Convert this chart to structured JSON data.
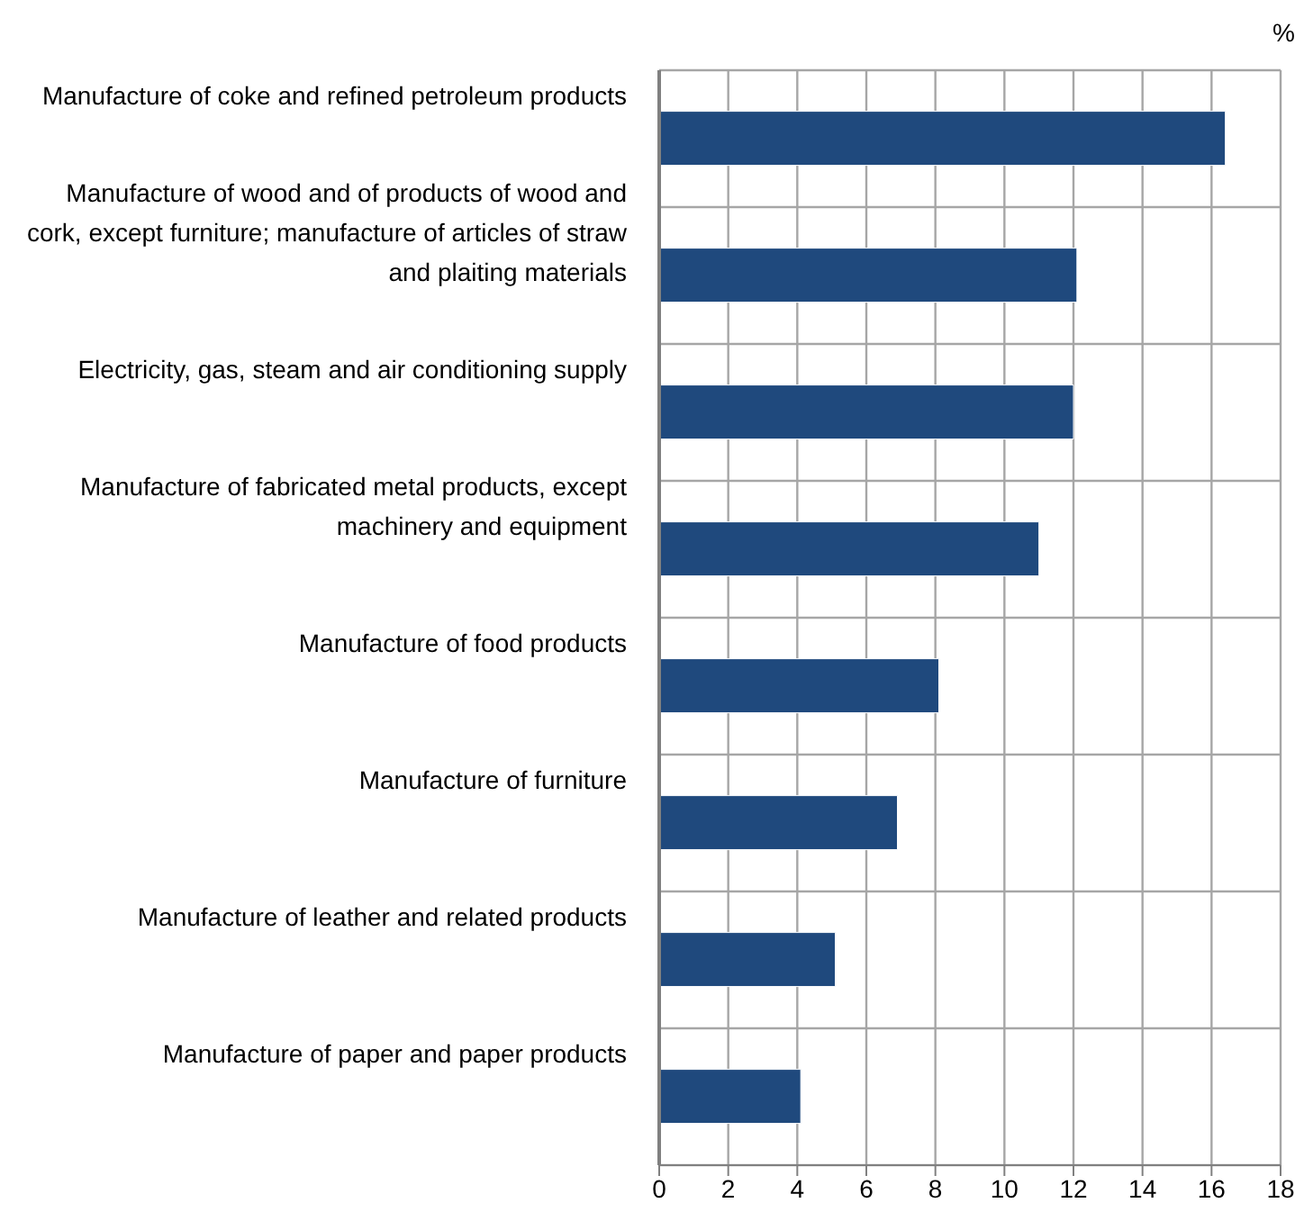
{
  "chart_data": {
    "type": "bar",
    "orientation": "horizontal",
    "xlabel": "%",
    "categories": [
      "Manufacture of coke and refined petroleum products",
      "Manufacture of wood and of products of wood and cork, except furniture; manufacture of articles of straw and plaiting materials",
      "Electricity, gas, steam and air conditioning supply",
      "Manufacture of fabricated metal products, except machinery and equipment",
      "Manufacture of food products",
      "Manufacture of furniture",
      "Manufacture of leather and related products",
      "Manufacture of paper and paper products"
    ],
    "values": [
      16.4,
      12.1,
      12.0,
      11.0,
      8.1,
      6.9,
      5.1,
      4.1
    ],
    "color": "#1f497d",
    "xlim": [
      0,
      18
    ],
    "xticks": [
      0,
      2,
      4,
      6,
      8,
      10,
      12,
      14,
      16,
      18
    ],
    "grid": true
  }
}
